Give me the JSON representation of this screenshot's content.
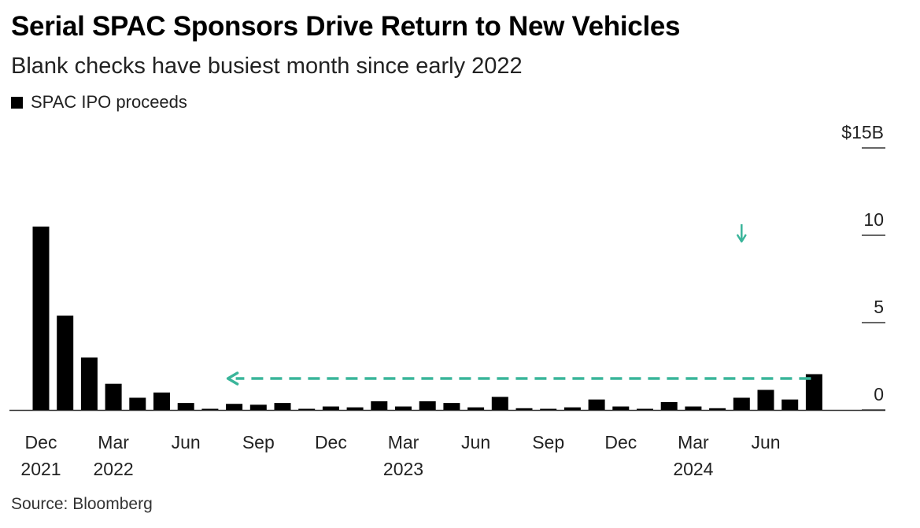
{
  "title": "Serial SPAC Sponsors Drive Return to New Vehicles",
  "subtitle": "Blank checks have busiest month since early 2022",
  "source": "Source: Bloomberg",
  "colors": {
    "bar": "#000000",
    "arrow": "#3ab59a",
    "axis": "#333333"
  },
  "chart_data": {
    "type": "bar",
    "legend": {
      "entries": [
        "SPAC IPO proceeds"
      ],
      "placement": "top-left"
    },
    "xlabel": "",
    "ylabel": "",
    "ylim": [
      0,
      15
    ],
    "y_ticks": [
      {
        "value": 15,
        "label": "$15B"
      },
      {
        "value": 10,
        "label": "10"
      },
      {
        "value": 5,
        "label": "5"
      },
      {
        "value": 0,
        "label": "0"
      }
    ],
    "x_tick_labels": [
      {
        "index": 0,
        "line1": "Dec",
        "line2": "2021"
      },
      {
        "index": 3,
        "line1": "Mar",
        "line2": "2022"
      },
      {
        "index": 6,
        "line1": "Jun",
        "line2": ""
      },
      {
        "index": 9,
        "line1": "Sep",
        "line2": ""
      },
      {
        "index": 12,
        "line1": "Dec",
        "line2": ""
      },
      {
        "index": 15,
        "line1": "Mar",
        "line2": "2023"
      },
      {
        "index": 18,
        "line1": "Jun",
        "line2": ""
      },
      {
        "index": 21,
        "line1": "Sep",
        "line2": ""
      },
      {
        "index": 24,
        "line1": "Dec",
        "line2": ""
      },
      {
        "index": 27,
        "line1": "Mar",
        "line2": "2024"
      },
      {
        "index": 30,
        "line1": "Jun",
        "line2": ""
      }
    ],
    "categories": [
      "2021-12",
      "2022-01",
      "2022-02",
      "2022-03",
      "2022-04",
      "2022-05",
      "2022-06",
      "2022-07",
      "2022-08",
      "2022-09",
      "2022-10",
      "2022-11",
      "2022-12",
      "2023-01",
      "2023-02",
      "2023-03",
      "2023-04",
      "2023-05",
      "2023-06",
      "2023-07",
      "2023-08",
      "2023-09",
      "2023-10",
      "2023-11",
      "2023-12",
      "2024-01",
      "2024-02",
      "2024-03",
      "2024-04",
      "2024-05",
      "2024-06",
      "2024-07",
      "2024-08",
      "2024-09"
    ],
    "series": [
      {
        "name": "SPAC IPO proceeds",
        "values": [
          10.5,
          5.4,
          3.0,
          1.5,
          0.7,
          1.0,
          0.4,
          0.05,
          0.35,
          0.3,
          0.4,
          0.05,
          0.2,
          0.15,
          0.5,
          0.2,
          0.5,
          0.4,
          0.15,
          0.75,
          0.1,
          0.05,
          0.15,
          0.6,
          0.2,
          0.05,
          0.45,
          0.2,
          0.1,
          0.7,
          1.15,
          0.6,
          2.05,
          0.0
        ]
      }
    ],
    "annotations": [
      {
        "type": "arrow-down",
        "description": "marker",
        "at_category": "2024-05",
        "value": 10
      },
      {
        "type": "dashed-arrow-left",
        "from_category": "2024-08",
        "to_category": "2022-08",
        "value": 1.8
      }
    ],
    "grid": false
  }
}
